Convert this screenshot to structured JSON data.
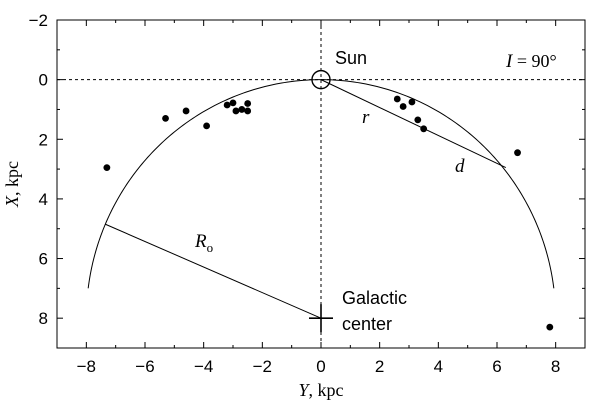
{
  "chart_data": {
    "type": "scatter",
    "xlabel_var": "Y",
    "xlabel_unit": ", kpc",
    "ylabel_var": "X",
    "ylabel_unit": ", kpc",
    "xlim": [
      -9,
      9
    ],
    "ylim": [
      9,
      -2
    ],
    "xticks": [
      -8,
      -6,
      -4,
      -2,
      0,
      2,
      4,
      6,
      8
    ],
    "yticks": [
      -2,
      0,
      2,
      4,
      6,
      8
    ],
    "grid": false,
    "points": [
      {
        "x": -7.3,
        "y": 2.95
      },
      {
        "x": -5.3,
        "y": 1.3
      },
      {
        "x": -4.6,
        "y": 1.05
      },
      {
        "x": -3.9,
        "y": 1.55
      },
      {
        "x": -3.2,
        "y": 0.85
      },
      {
        "x": -3.0,
        "y": 0.78
      },
      {
        "x": -2.9,
        "y": 1.05
      },
      {
        "x": -2.7,
        "y": 1.0
      },
      {
        "x": -2.5,
        "y": 1.05
      },
      {
        "x": -2.5,
        "y": 0.8
      },
      {
        "x": 2.6,
        "y": 0.65
      },
      {
        "x": 2.8,
        "y": 0.9
      },
      {
        "x": 3.1,
        "y": 0.75
      },
      {
        "x": 3.3,
        "y": 1.35
      },
      {
        "x": 3.5,
        "y": 1.65
      },
      {
        "x": 6.7,
        "y": 2.45
      },
      {
        "x": 7.8,
        "y": 8.3
      }
    ],
    "galactic_center": {
      "x": 0,
      "y": 8
    },
    "circle_radius": 8,
    "sun_marker": {
      "x": 0,
      "y": 0
    },
    "reference_lines": {
      "vertical_x": 0,
      "horizontal_y": 0
    },
    "rho_line": {
      "from": {
        "x": 0,
        "y": 8
      },
      "to": {
        "x": -7.35,
        "y": 4.85
      }
    },
    "d_line": {
      "from": {
        "x": 0,
        "y": 0
      },
      "to": {
        "x": 6.3,
        "y": 2.95
      }
    },
    "annotations": {
      "sun": "Sun",
      "longitude_var": "I",
      "longitude_value": " = 90°",
      "r": "r",
      "d": "d",
      "ro_main": "R",
      "ro_sub": "o",
      "gc_line1": "Galactic",
      "gc_line2": "center"
    }
  }
}
